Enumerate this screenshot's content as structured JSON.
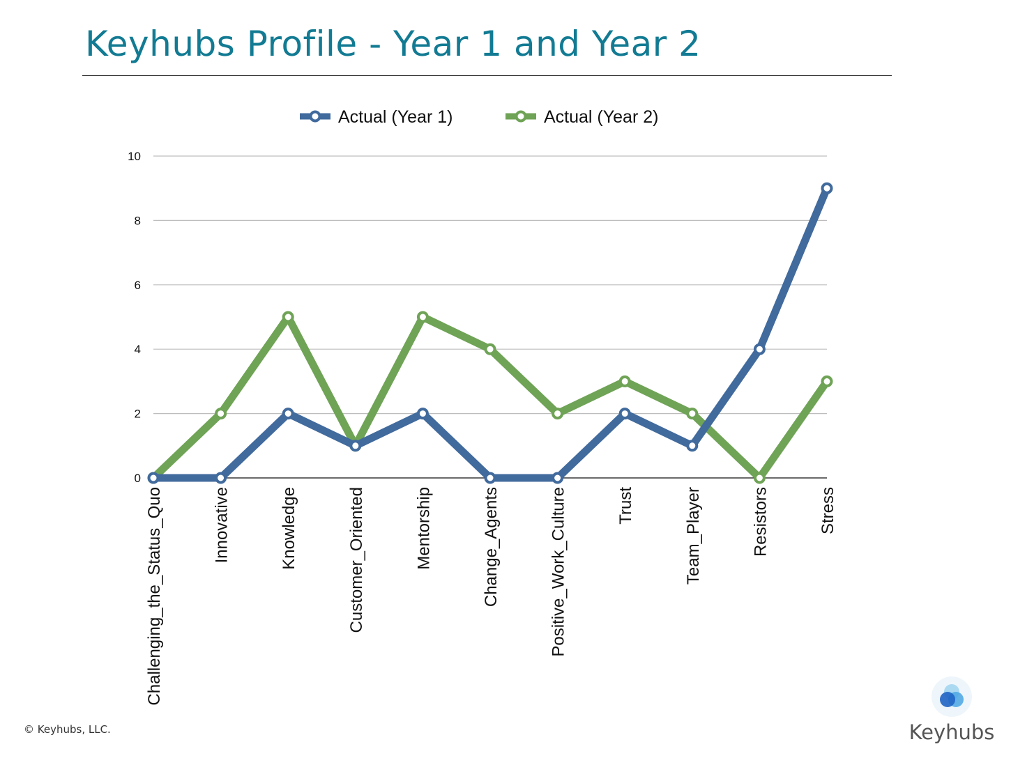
{
  "page": {
    "title": "Keyhubs Profile - Year 1 and Year 2",
    "copyright": "© Keyhubs, LLC.",
    "logo_text": "Keyhubs"
  },
  "colors": {
    "title": "#127b93",
    "year1": "#416a9d",
    "year2": "#6fa356",
    "grid": "#bdbdbd",
    "logo_light": "#9fd3f0",
    "logo_mid": "#4aa6e3",
    "logo_dark": "#1f64c4"
  },
  "chart_data": {
    "type": "line",
    "title": "",
    "xlabel": "",
    "ylabel": "",
    "ylim": [
      0,
      10
    ],
    "yticks": [
      0,
      2,
      4,
      6,
      8,
      10
    ],
    "grid": true,
    "legend_position": "top-center",
    "categories": [
      "Challenging_the_Status_Quo",
      "Innovative",
      "Knowledge",
      "Customer_Oriented",
      "Mentorship",
      "Change_Agents",
      "Positive_Work_Culture",
      "Trust",
      "Team_Player",
      "Resistors",
      "Stress"
    ],
    "series": [
      {
        "name": "Actual (Year 1)",
        "color": "#416a9d",
        "values": [
          0,
          0,
          2,
          1,
          2,
          0,
          0,
          2,
          1,
          4,
          9
        ]
      },
      {
        "name": "Actual (Year 2)",
        "color": "#6fa356",
        "values": [
          0,
          2,
          5,
          1,
          5,
          4,
          2,
          3,
          2,
          0,
          3
        ]
      }
    ]
  }
}
